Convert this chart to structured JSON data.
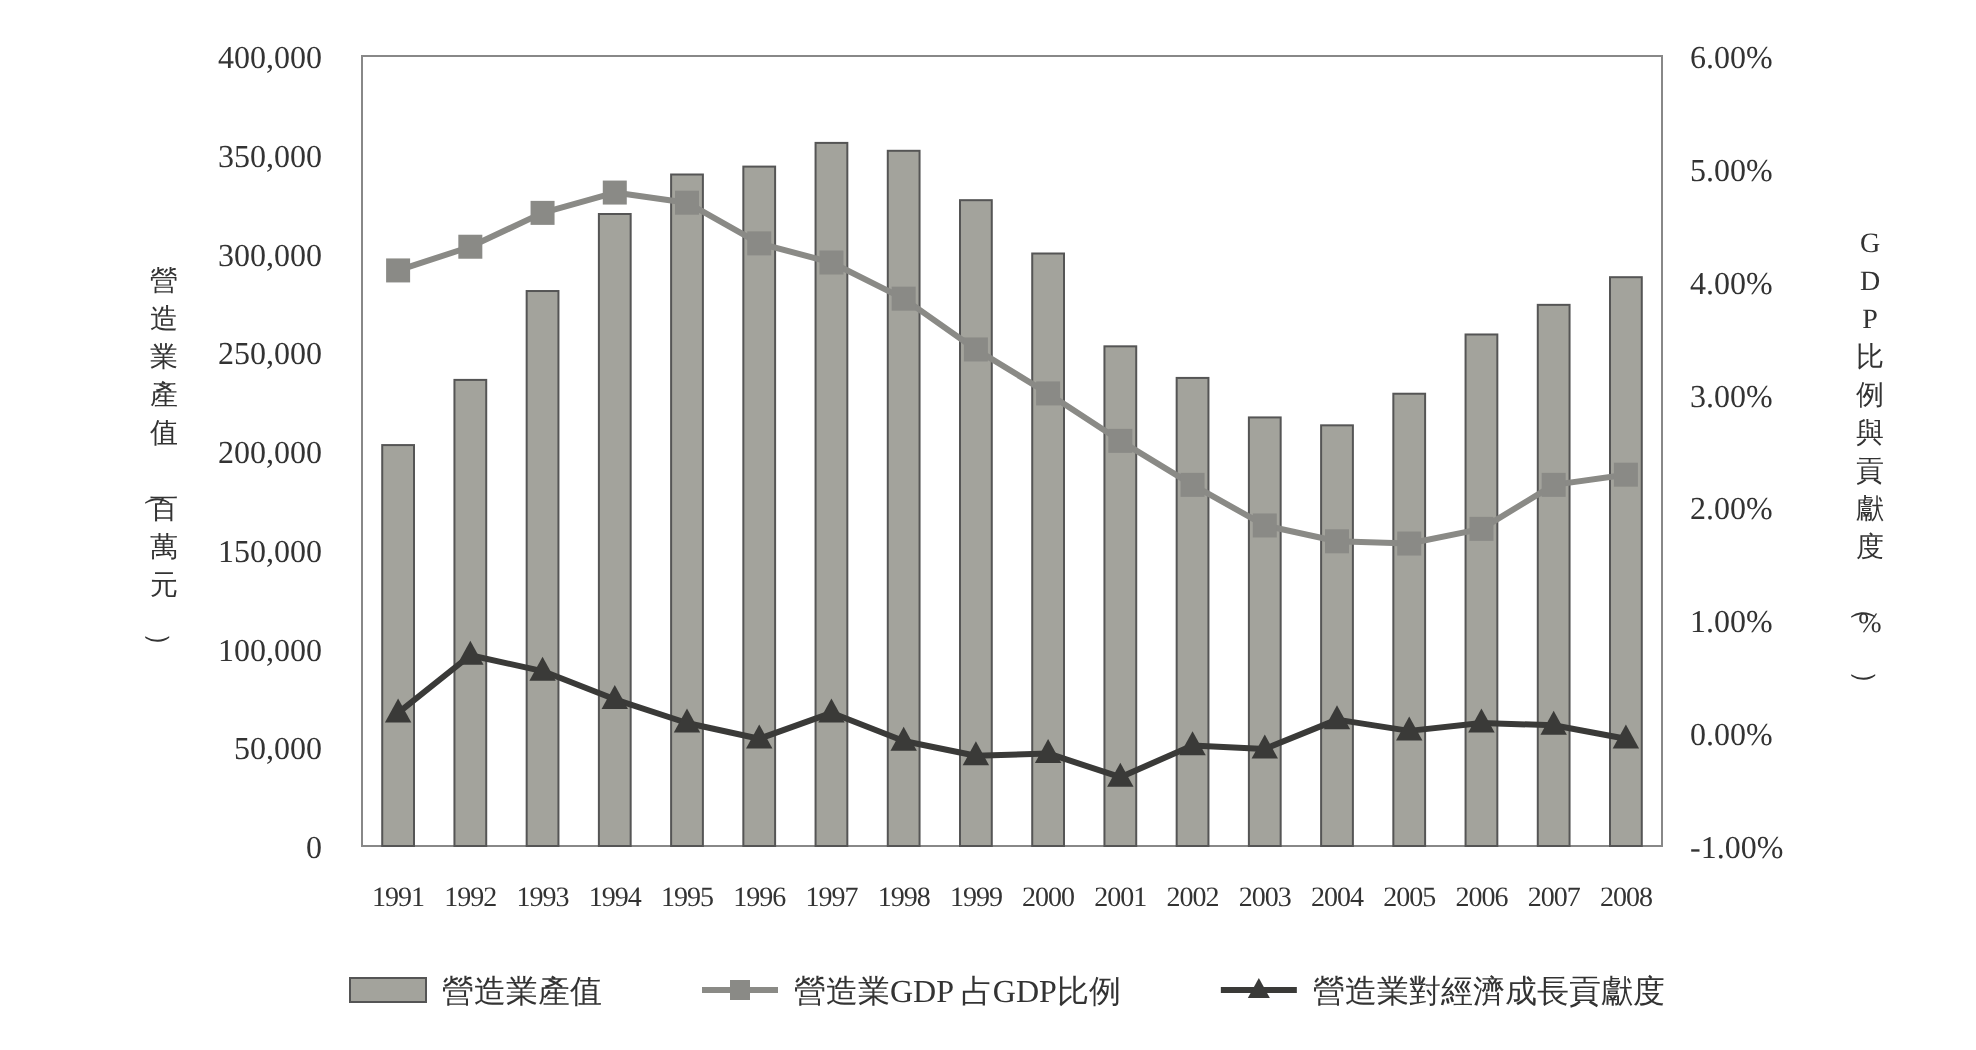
{
  "chart_data": {
    "type": "bar",
    "ylabel": "營造業產值（百萬元）",
    "y2label": "GDP比例與貢獻度（%）",
    "categories": [
      "1991",
      "1992",
      "1993",
      "1994",
      "1995",
      "1996",
      "1997",
      "1998",
      "1999",
      "2000",
      "2001",
      "2002",
      "2003",
      "2004",
      "2005",
      "2006",
      "2007",
      "2008"
    ],
    "series": [
      {
        "name": "營造業產值",
        "color": "#a3a39c",
        "values": [
          203000,
          236000,
          281000,
          320000,
          340000,
          344000,
          356000,
          352000,
          327000,
          300000,
          253000,
          237000,
          217000,
          213000,
          229000,
          259000,
          274000,
          288000
        ]
      },
      {
        "name": "營造業GDP 占GDP比例",
        "type": "line",
        "axis": "y2",
        "marker": "square",
        "color": "#8a8a86",
        "values": [
          4.1,
          4.31,
          4.61,
          4.79,
          4.7,
          4.34,
          4.17,
          3.85,
          3.4,
          3.01,
          2.59,
          2.2,
          1.84,
          1.7,
          1.68,
          1.81,
          2.2,
          2.29
        ]
      },
      {
        "name": "營造業對經濟成長貢獻度",
        "type": "line",
        "axis": "y2",
        "marker": "triangle",
        "color": "#3a3a38",
        "values": [
          0.18,
          0.69,
          0.55,
          0.3,
          0.09,
          -0.05,
          0.18,
          -0.07,
          -0.2,
          -0.18,
          -0.39,
          -0.11,
          -0.14,
          0.12,
          0.02,
          0.09,
          0.07,
          -0.05
        ]
      }
    ],
    "ylim": [
      0,
      400000
    ],
    "yticks": [
      0,
      {
        "value": 50000,
        "label": "50,000"
      },
      {
        "value": 100000,
        "label": "100,000"
      },
      {
        "value": 150000,
        "label": "150,000"
      },
      {
        "value": 200000,
        "label": "200,000"
      },
      {
        "value": 250000,
        "label": "250,000"
      },
      {
        "value": 300000,
        "label": "300,000"
      },
      {
        "value": 350000,
        "label": "350,000"
      },
      {
        "value": 400000,
        "label": "400,000"
      }
    ],
    "y2lim": [
      -1,
      6
    ],
    "y2ticks": [
      {
        "value": -1,
        "label": "-1.00%"
      },
      {
        "value": 0,
        "label": "0.00%"
      },
      {
        "value": 1,
        "label": "1.00%"
      },
      {
        "value": 2,
        "label": "2.00%"
      },
      {
        "value": 3,
        "label": "3.00%"
      },
      {
        "value": 4,
        "label": "4.00%"
      },
      {
        "value": 5,
        "label": "5.00%"
      },
      {
        "value": 6,
        "label": "6.00%"
      }
    ],
    "grid": false,
    "legend": "bottom"
  }
}
